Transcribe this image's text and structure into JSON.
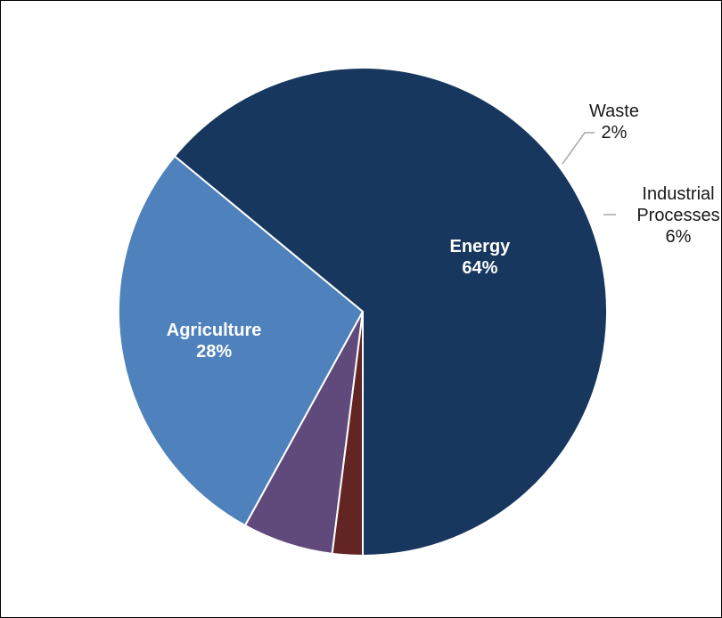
{
  "chart_data": {
    "type": "pie",
    "title": "",
    "slices": [
      {
        "label": "Energy",
        "value": 64,
        "value_label": "64%",
        "color": "#17375E"
      },
      {
        "label": "Agriculture",
        "value": 28,
        "value_label": "28%",
        "color": "#4F81BD"
      },
      {
        "label": "Industrial Processes",
        "value": 6,
        "value_label": "6%",
        "color": "#604A7B"
      },
      {
        "label": "Waste",
        "value": 2,
        "value_label": "2%",
        "color": "#632523"
      }
    ],
    "start_angle_deg": 180,
    "direction": "counterclockwise",
    "legend": "none",
    "data_labels": "category-and-percent"
  }
}
